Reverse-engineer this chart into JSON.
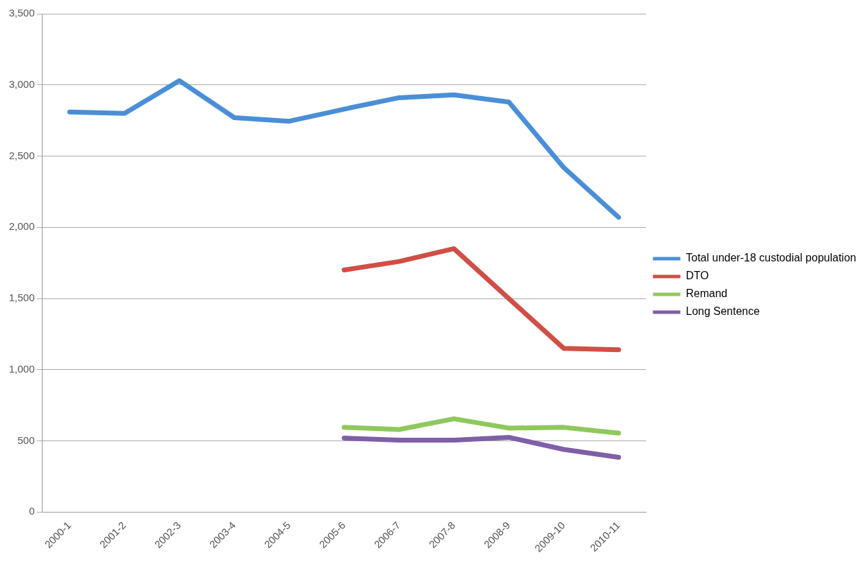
{
  "chart_data": {
    "type": "line",
    "categories": [
      "2000-1",
      "2001-2",
      "2002-3",
      "2003-4",
      "2004-5",
      "2005-6",
      "2006-7",
      "2007-8",
      "2008-9",
      "2009-10",
      "2010-11"
    ],
    "series": [
      {
        "name": "Total under-18 custodial population",
        "color": "#4a8fd6",
        "values": [
          2810,
          2800,
          3030,
          2770,
          2745,
          2830,
          2910,
          2930,
          2880,
          2420,
          2070
        ]
      },
      {
        "name": "DTO",
        "color": "#cf4f47",
        "values": [
          null,
          null,
          null,
          null,
          null,
          1700,
          1760,
          1850,
          1500,
          1150,
          1140
        ]
      },
      {
        "name": "Remand",
        "color": "#8fc85c",
        "values": [
          null,
          null,
          null,
          null,
          null,
          595,
          580,
          655,
          590,
          595,
          555
        ]
      },
      {
        "name": "Long Sentence",
        "color": "#7f5fa8",
        "values": [
          null,
          null,
          null,
          null,
          null,
          520,
          505,
          505,
          525,
          440,
          385
        ]
      }
    ],
    "ylim": [
      0,
      3500
    ],
    "yticks": [
      0,
      500,
      {
        "value": 1000,
        "label": "1,000"
      },
      {
        "value": 1500,
        "label": "1,500"
      },
      {
        "value": 2000,
        "label": "2,000"
      },
      {
        "value": 2500,
        "label": "2,500"
      },
      {
        "value": 3000,
        "label": "3,000"
      },
      {
        "value": 3500,
        "label": "3,500"
      }
    ],
    "grid": "y",
    "legend": "right",
    "marker": "none",
    "line_style": "solid"
  }
}
